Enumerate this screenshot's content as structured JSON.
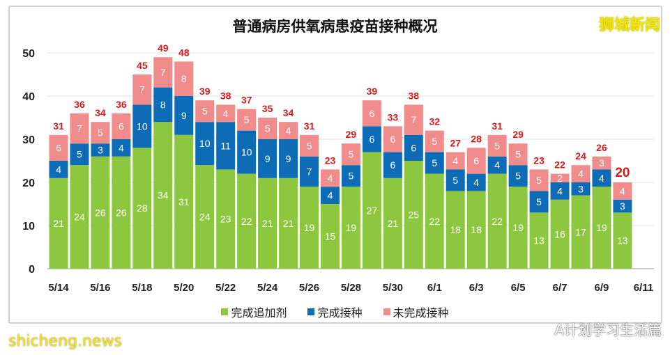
{
  "logo_text": "狮城新闻",
  "watermarks": [
    "shicheng.news",
    "A计划学习生活篇"
  ],
  "chart_data": {
    "type": "bar",
    "stacked": true,
    "title": "普通病房供氧病患疫苗接种概况",
    "xlabel": "",
    "ylabel": "",
    "ylim": [
      0,
      50
    ],
    "yticks": [
      0,
      10,
      20,
      30,
      40,
      50
    ],
    "grid": true,
    "legend_position": "bottom",
    "categories": [
      "5/14",
      "5/15",
      "5/16",
      "5/17",
      "5/18",
      "5/19",
      "5/20",
      "5/21",
      "5/22",
      "5/23",
      "5/24",
      "5/25",
      "5/26",
      "5/27",
      "5/28",
      "5/29",
      "5/30",
      "5/31",
      "6/1",
      "6/2",
      "6/3",
      "6/4",
      "6/5",
      "6/6",
      "6/7",
      "6/8",
      "6/9",
      "6/10"
    ],
    "xtick_labels": [
      "5/14",
      "5/16",
      "5/18",
      "5/20",
      "5/22",
      "5/24",
      "5/26",
      "5/28",
      "5/30",
      "6/1",
      "6/3",
      "6/5",
      "6/7",
      "6/9",
      "6/11"
    ],
    "series": [
      {
        "name": "完成追加剂",
        "color": "#8dc63f",
        "values": [
          21,
          24,
          26,
          26,
          28,
          34,
          31,
          24,
          23,
          22,
          21,
          21,
          19,
          15,
          19,
          27,
          21,
          25,
          22,
          18,
          18,
          22,
          19,
          13,
          16,
          17,
          19,
          13
        ]
      },
      {
        "name": "完成接种",
        "color": "#0e6bb5",
        "values": [
          4,
          5,
          3,
          4,
          10,
          8,
          9,
          10,
          11,
          10,
          9,
          9,
          7,
          4,
          5,
          6,
          6,
          6,
          5,
          5,
          4,
          4,
          5,
          5,
          4,
          3,
          4,
          3
        ]
      },
      {
        "name": "未完成接种",
        "color": "#f08c8c",
        "values": [
          6,
          7,
          5,
          6,
          7,
          7,
          8,
          5,
          4,
          5,
          5,
          4,
          5,
          4,
          5,
          6,
          6,
          7,
          5,
          4,
          6,
          5,
          5,
          5,
          2,
          4,
          3,
          4
        ]
      }
    ],
    "totals": [
      31,
      36,
      34,
      36,
      45,
      49,
      48,
      39,
      38,
      37,
      35,
      34,
      31,
      23,
      29,
      39,
      33,
      38,
      32,
      27,
      28,
      31,
      29,
      23,
      22,
      24,
      26,
      20
    ],
    "total_label_color": "#d7191c"
  }
}
